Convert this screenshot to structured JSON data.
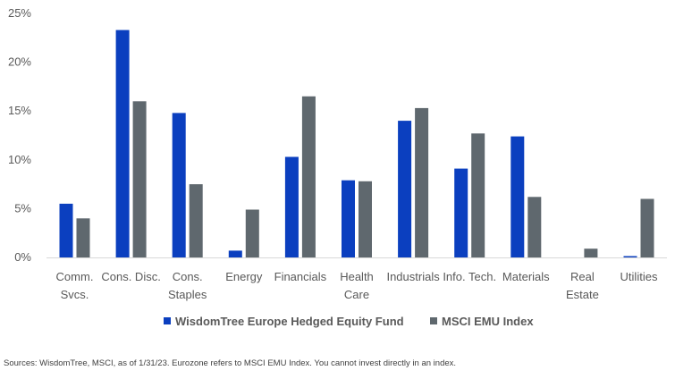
{
  "chart_data": {
    "type": "bar",
    "categories": [
      [
        "Comm.",
        "Svcs."
      ],
      [
        "Cons. Disc."
      ],
      [
        "Cons.",
        "Staples"
      ],
      [
        "Energy"
      ],
      [
        "Financials"
      ],
      [
        "Health",
        "Care"
      ],
      [
        "Industrials"
      ],
      [
        "Info. Tech."
      ],
      [
        "Materials"
      ],
      [
        "Real",
        "Estate"
      ],
      [
        "Utilities"
      ]
    ],
    "series": [
      {
        "name": "WisdomTree Europe Hedged Equity Fund",
        "color": "#0b3fbf",
        "values": [
          5.5,
          23.3,
          14.8,
          0.7,
          10.3,
          7.9,
          14.0,
          9.1,
          12.4,
          0.0,
          0.1
        ]
      },
      {
        "name": "MSCI EMU Index",
        "color": "#5f686e",
        "values": [
          4.0,
          16.0,
          7.5,
          4.9,
          16.5,
          7.8,
          15.3,
          12.7,
          6.2,
          0.9,
          6.0
        ]
      }
    ],
    "ylim": [
      0,
      25
    ],
    "yticks": [
      "0%",
      "5%",
      "10%",
      "15%",
      "20%",
      "25%"
    ],
    "ytick_values": [
      0,
      5,
      10,
      15,
      20,
      25
    ],
    "grid": false,
    "legend": "bottom-center"
  },
  "source_note": "Sources: WisdomTree, MSCI, as of 1/31/23. Eurozone refers to MSCI EMU Index. You cannot invest directly in an index."
}
